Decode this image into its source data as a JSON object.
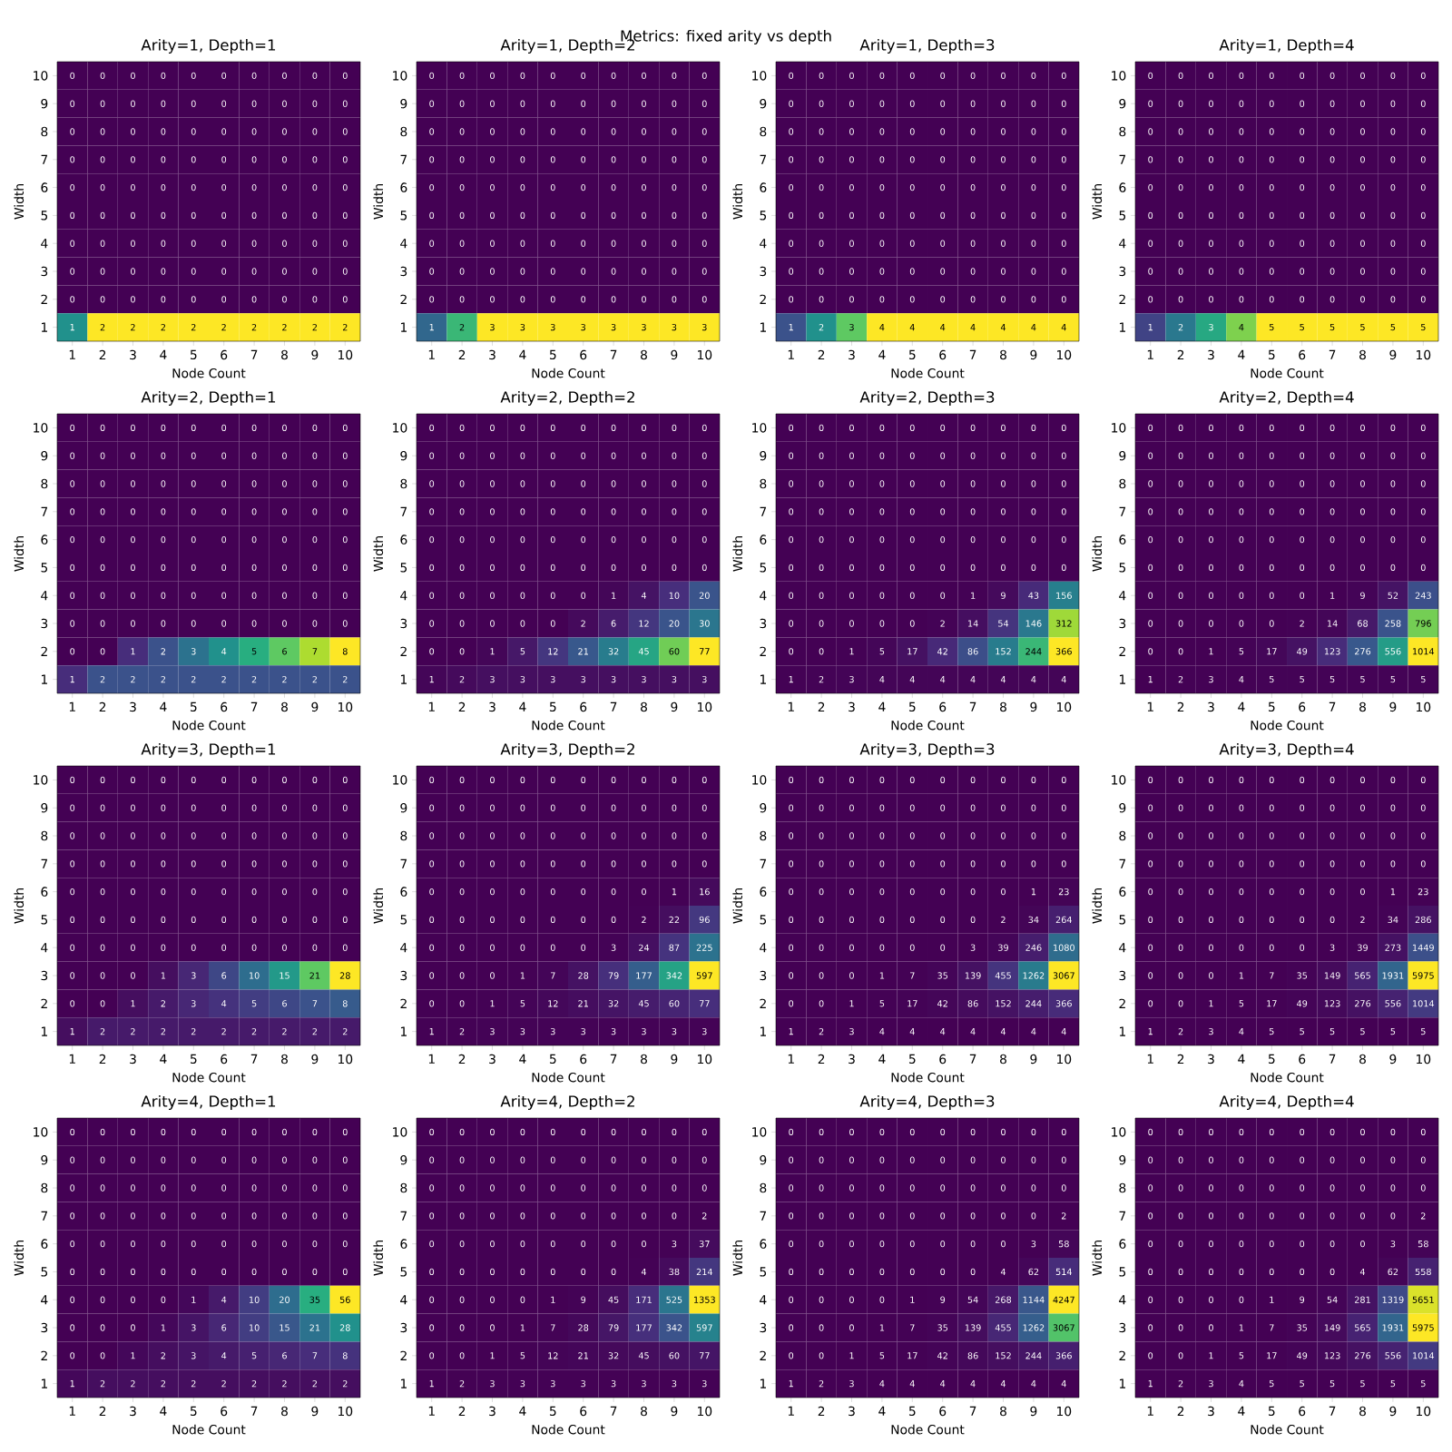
{
  "chart_data": [
    {
      "type": "heatmap",
      "title": "Arity=1, Depth=1",
      "xlabel": "Node Count",
      "ylabel": "Width",
      "annotations": [
        "Metrics: fixed arity vs depth"
      ],
      "categories": [
        "1",
        "2",
        "3",
        "4",
        "5",
        "6",
        "7",
        "8",
        "9",
        "10"
      ],
      "y_categories": [
        "10",
        "9",
        "8",
        "7",
        "6",
        "5",
        "4",
        "3",
        "2",
        "1"
      ],
      "data_labels": true,
      "cells": [
        [
          0,
          0,
          0,
          0,
          0,
          0,
          0,
          0,
          0,
          0
        ],
        [
          0,
          0,
          0,
          0,
          0,
          0,
          0,
          0,
          0,
          0
        ],
        [
          0,
          0,
          0,
          0,
          0,
          0,
          0,
          0,
          0,
          0
        ],
        [
          0,
          0,
          0,
          0,
          0,
          0,
          0,
          0,
          0,
          0
        ],
        [
          0,
          0,
          0,
          0,
          0,
          0,
          0,
          0,
          0,
          0
        ],
        [
          0,
          0,
          0,
          0,
          0,
          0,
          0,
          0,
          0,
          0
        ],
        [
          0,
          0,
          0,
          0,
          0,
          0,
          0,
          0,
          0,
          0
        ],
        [
          0,
          0,
          0,
          0,
          0,
          0,
          0,
          0,
          0,
          0
        ],
        [
          0,
          0,
          0,
          0,
          0,
          0,
          0,
          0,
          0,
          0
        ],
        [
          1,
          2,
          2,
          2,
          2,
          2,
          2,
          2,
          2,
          2
        ]
      ]
    },
    {
      "type": "heatmap",
      "title": "Arity=1, Depth=2",
      "xlabel": "Node Count",
      "ylabel": "Width",
      "categories": [
        "1",
        "2",
        "3",
        "4",
        "5",
        "6",
        "7",
        "8",
        "9",
        "10"
      ],
      "y_categories": [
        "10",
        "9",
        "8",
        "7",
        "6",
        "5",
        "4",
        "3",
        "2",
        "1"
      ],
      "data_labels": true,
      "cells": [
        [
          0,
          0,
          0,
          0,
          0,
          0,
          0,
          0,
          0,
          0
        ],
        [
          0,
          0,
          0,
          0,
          0,
          0,
          0,
          0,
          0,
          0
        ],
        [
          0,
          0,
          0,
          0,
          0,
          0,
          0,
          0,
          0,
          0
        ],
        [
          0,
          0,
          0,
          0,
          0,
          0,
          0,
          0,
          0,
          0
        ],
        [
          0,
          0,
          0,
          0,
          0,
          0,
          0,
          0,
          0,
          0
        ],
        [
          0,
          0,
          0,
          0,
          0,
          0,
          0,
          0,
          0,
          0
        ],
        [
          0,
          0,
          0,
          0,
          0,
          0,
          0,
          0,
          0,
          0
        ],
        [
          0,
          0,
          0,
          0,
          0,
          0,
          0,
          0,
          0,
          0
        ],
        [
          0,
          0,
          0,
          0,
          0,
          0,
          0,
          0,
          0,
          0
        ],
        [
          1,
          2,
          3,
          3,
          3,
          3,
          3,
          3,
          3,
          3
        ]
      ]
    },
    {
      "type": "heatmap",
      "title": "Arity=1, Depth=3",
      "xlabel": "Node Count",
      "ylabel": "Width",
      "categories": [
        "1",
        "2",
        "3",
        "4",
        "5",
        "6",
        "7",
        "8",
        "9",
        "10"
      ],
      "y_categories": [
        "10",
        "9",
        "8",
        "7",
        "6",
        "5",
        "4",
        "3",
        "2",
        "1"
      ],
      "data_labels": true,
      "cells": [
        [
          0,
          0,
          0,
          0,
          0,
          0,
          0,
          0,
          0,
          0
        ],
        [
          0,
          0,
          0,
          0,
          0,
          0,
          0,
          0,
          0,
          0
        ],
        [
          0,
          0,
          0,
          0,
          0,
          0,
          0,
          0,
          0,
          0
        ],
        [
          0,
          0,
          0,
          0,
          0,
          0,
          0,
          0,
          0,
          0
        ],
        [
          0,
          0,
          0,
          0,
          0,
          0,
          0,
          0,
          0,
          0
        ],
        [
          0,
          0,
          0,
          0,
          0,
          0,
          0,
          0,
          0,
          0
        ],
        [
          0,
          0,
          0,
          0,
          0,
          0,
          0,
          0,
          0,
          0
        ],
        [
          0,
          0,
          0,
          0,
          0,
          0,
          0,
          0,
          0,
          0
        ],
        [
          0,
          0,
          0,
          0,
          0,
          0,
          0,
          0,
          0,
          0
        ],
        [
          1,
          2,
          3,
          4,
          4,
          4,
          4,
          4,
          4,
          4
        ]
      ]
    },
    {
      "type": "heatmap",
      "title": "Arity=1, Depth=4",
      "xlabel": "Node Count",
      "ylabel": "Width",
      "categories": [
        "1",
        "2",
        "3",
        "4",
        "5",
        "6",
        "7",
        "8",
        "9",
        "10"
      ],
      "y_categories": [
        "10",
        "9",
        "8",
        "7",
        "6",
        "5",
        "4",
        "3",
        "2",
        "1"
      ],
      "data_labels": true,
      "cells": [
        [
          0,
          0,
          0,
          0,
          0,
          0,
          0,
          0,
          0,
          0
        ],
        [
          0,
          0,
          0,
          0,
          0,
          0,
          0,
          0,
          0,
          0
        ],
        [
          0,
          0,
          0,
          0,
          0,
          0,
          0,
          0,
          0,
          0
        ],
        [
          0,
          0,
          0,
          0,
          0,
          0,
          0,
          0,
          0,
          0
        ],
        [
          0,
          0,
          0,
          0,
          0,
          0,
          0,
          0,
          0,
          0
        ],
        [
          0,
          0,
          0,
          0,
          0,
          0,
          0,
          0,
          0,
          0
        ],
        [
          0,
          0,
          0,
          0,
          0,
          0,
          0,
          0,
          0,
          0
        ],
        [
          0,
          0,
          0,
          0,
          0,
          0,
          0,
          0,
          0,
          0
        ],
        [
          0,
          0,
          0,
          0,
          0,
          0,
          0,
          0,
          0,
          0
        ],
        [
          1,
          2,
          3,
          4,
          5,
          5,
          5,
          5,
          5,
          5
        ]
      ]
    },
    {
      "type": "heatmap",
      "title": "Arity=2, Depth=1",
      "xlabel": "Node Count",
      "ylabel": "Width",
      "categories": [
        "1",
        "2",
        "3",
        "4",
        "5",
        "6",
        "7",
        "8",
        "9",
        "10"
      ],
      "y_categories": [
        "10",
        "9",
        "8",
        "7",
        "6",
        "5",
        "4",
        "3",
        "2",
        "1"
      ],
      "data_labels": true,
      "cells": [
        [
          0,
          0,
          0,
          0,
          0,
          0,
          0,
          0,
          0,
          0
        ],
        [
          0,
          0,
          0,
          0,
          0,
          0,
          0,
          0,
          0,
          0
        ],
        [
          0,
          0,
          0,
          0,
          0,
          0,
          0,
          0,
          0,
          0
        ],
        [
          0,
          0,
          0,
          0,
          0,
          0,
          0,
          0,
          0,
          0
        ],
        [
          0,
          0,
          0,
          0,
          0,
          0,
          0,
          0,
          0,
          0
        ],
        [
          0,
          0,
          0,
          0,
          0,
          0,
          0,
          0,
          0,
          0
        ],
        [
          0,
          0,
          0,
          0,
          0,
          0,
          0,
          0,
          0,
          0
        ],
        [
          0,
          0,
          0,
          0,
          0,
          0,
          0,
          0,
          0,
          0
        ],
        [
          0,
          0,
          1,
          2,
          3,
          4,
          5,
          6,
          7,
          8
        ],
        [
          1,
          2,
          2,
          2,
          2,
          2,
          2,
          2,
          2,
          2
        ]
      ]
    },
    {
      "type": "heatmap",
      "title": "Arity=2, Depth=2",
      "xlabel": "Node Count",
      "ylabel": "Width",
      "categories": [
        "1",
        "2",
        "3",
        "4",
        "5",
        "6",
        "7",
        "8",
        "9",
        "10"
      ],
      "y_categories": [
        "10",
        "9",
        "8",
        "7",
        "6",
        "5",
        "4",
        "3",
        "2",
        "1"
      ],
      "data_labels": true,
      "cells": [
        [
          0,
          0,
          0,
          0,
          0,
          0,
          0,
          0,
          0,
          0
        ],
        [
          0,
          0,
          0,
          0,
          0,
          0,
          0,
          0,
          0,
          0
        ],
        [
          0,
          0,
          0,
          0,
          0,
          0,
          0,
          0,
          0,
          0
        ],
        [
          0,
          0,
          0,
          0,
          0,
          0,
          0,
          0,
          0,
          0
        ],
        [
          0,
          0,
          0,
          0,
          0,
          0,
          0,
          0,
          0,
          0
        ],
        [
          0,
          0,
          0,
          0,
          0,
          0,
          0,
          0,
          0,
          0
        ],
        [
          0,
          0,
          0,
          0,
          0,
          0,
          1,
          4,
          10,
          20
        ],
        [
          0,
          0,
          0,
          0,
          0,
          2,
          6,
          12,
          20,
          30
        ],
        [
          0,
          0,
          1,
          5,
          12,
          21,
          32,
          45,
          60,
          77
        ],
        [
          1,
          2,
          3,
          3,
          3,
          3,
          3,
          3,
          3,
          3
        ]
      ]
    },
    {
      "type": "heatmap",
      "title": "Arity=2, Depth=3",
      "xlabel": "Node Count",
      "ylabel": "Width",
      "categories": [
        "1",
        "2",
        "3",
        "4",
        "5",
        "6",
        "7",
        "8",
        "9",
        "10"
      ],
      "y_categories": [
        "10",
        "9",
        "8",
        "7",
        "6",
        "5",
        "4",
        "3",
        "2",
        "1"
      ],
      "data_labels": true,
      "cells": [
        [
          0,
          0,
          0,
          0,
          0,
          0,
          0,
          0,
          0,
          0
        ],
        [
          0,
          0,
          0,
          0,
          0,
          0,
          0,
          0,
          0,
          0
        ],
        [
          0,
          0,
          0,
          0,
          0,
          0,
          0,
          0,
          0,
          0
        ],
        [
          0,
          0,
          0,
          0,
          0,
          0,
          0,
          0,
          0,
          0
        ],
        [
          0,
          0,
          0,
          0,
          0,
          0,
          0,
          0,
          0,
          0
        ],
        [
          0,
          0,
          0,
          0,
          0,
          0,
          0,
          0,
          0,
          0
        ],
        [
          0,
          0,
          0,
          0,
          0,
          0,
          1,
          9,
          43,
          156
        ],
        [
          0,
          0,
          0,
          0,
          0,
          2,
          14,
          54,
          146,
          312
        ],
        [
          0,
          0,
          1,
          5,
          17,
          42,
          86,
          152,
          244,
          366
        ],
        [
          1,
          2,
          3,
          4,
          4,
          4,
          4,
          4,
          4,
          4
        ]
      ]
    },
    {
      "type": "heatmap",
      "title": "Arity=2, Depth=4",
      "xlabel": "Node Count",
      "ylabel": "Width",
      "categories": [
        "1",
        "2",
        "3",
        "4",
        "5",
        "6",
        "7",
        "8",
        "9",
        "10"
      ],
      "y_categories": [
        "10",
        "9",
        "8",
        "7",
        "6",
        "5",
        "4",
        "3",
        "2",
        "1"
      ],
      "data_labels": true,
      "cells": [
        [
          0,
          0,
          0,
          0,
          0,
          0,
          0,
          0,
          0,
          0
        ],
        [
          0,
          0,
          0,
          0,
          0,
          0,
          0,
          0,
          0,
          0
        ],
        [
          0,
          0,
          0,
          0,
          0,
          0,
          0,
          0,
          0,
          0
        ],
        [
          0,
          0,
          0,
          0,
          0,
          0,
          0,
          0,
          0,
          0
        ],
        [
          0,
          0,
          0,
          0,
          0,
          0,
          0,
          0,
          0,
          0
        ],
        [
          0,
          0,
          0,
          0,
          0,
          0,
          0,
          0,
          0,
          0
        ],
        [
          0,
          0,
          0,
          0,
          0,
          0,
          1,
          9,
          52,
          243
        ],
        [
          0,
          0,
          0,
          0,
          0,
          2,
          14,
          68,
          258,
          796
        ],
        [
          0,
          0,
          1,
          5,
          17,
          49,
          123,
          276,
          556,
          1014
        ],
        [
          1,
          2,
          3,
          4,
          5,
          5,
          5,
          5,
          5,
          5
        ]
      ]
    },
    {
      "type": "heatmap",
      "title": "Arity=3, Depth=1",
      "xlabel": "Node Count",
      "ylabel": "Width",
      "categories": [
        "1",
        "2",
        "3",
        "4",
        "5",
        "6",
        "7",
        "8",
        "9",
        "10"
      ],
      "y_categories": [
        "10",
        "9",
        "8",
        "7",
        "6",
        "5",
        "4",
        "3",
        "2",
        "1"
      ],
      "data_labels": true,
      "cells": [
        [
          0,
          0,
          0,
          0,
          0,
          0,
          0,
          0,
          0,
          0
        ],
        [
          0,
          0,
          0,
          0,
          0,
          0,
          0,
          0,
          0,
          0
        ],
        [
          0,
          0,
          0,
          0,
          0,
          0,
          0,
          0,
          0,
          0
        ],
        [
          0,
          0,
          0,
          0,
          0,
          0,
          0,
          0,
          0,
          0
        ],
        [
          0,
          0,
          0,
          0,
          0,
          0,
          0,
          0,
          0,
          0
        ],
        [
          0,
          0,
          0,
          0,
          0,
          0,
          0,
          0,
          0,
          0
        ],
        [
          0,
          0,
          0,
          0,
          0,
          0,
          0,
          0,
          0,
          0
        ],
        [
          0,
          0,
          0,
          1,
          3,
          6,
          10,
          15,
          21,
          28
        ],
        [
          0,
          0,
          1,
          2,
          3,
          4,
          5,
          6,
          7,
          8
        ],
        [
          1,
          2,
          2,
          2,
          2,
          2,
          2,
          2,
          2,
          2
        ]
      ]
    },
    {
      "type": "heatmap",
      "title": "Arity=3, Depth=2",
      "xlabel": "Node Count",
      "ylabel": "Width",
      "categories": [
        "1",
        "2",
        "3",
        "4",
        "5",
        "6",
        "7",
        "8",
        "9",
        "10"
      ],
      "y_categories": [
        "10",
        "9",
        "8",
        "7",
        "6",
        "5",
        "4",
        "3",
        "2",
        "1"
      ],
      "data_labels": true,
      "cells": [
        [
          0,
          0,
          0,
          0,
          0,
          0,
          0,
          0,
          0,
          0
        ],
        [
          0,
          0,
          0,
          0,
          0,
          0,
          0,
          0,
          0,
          0
        ],
        [
          0,
          0,
          0,
          0,
          0,
          0,
          0,
          0,
          0,
          0
        ],
        [
          0,
          0,
          0,
          0,
          0,
          0,
          0,
          0,
          0,
          0
        ],
        [
          0,
          0,
          0,
          0,
          0,
          0,
          0,
          0,
          1,
          16
        ],
        [
          0,
          0,
          0,
          0,
          0,
          0,
          0,
          2,
          22,
          96
        ],
        [
          0,
          0,
          0,
          0,
          0,
          0,
          3,
          24,
          87,
          225
        ],
        [
          0,
          0,
          0,
          1,
          7,
          28,
          79,
          177,
          342,
          597
        ],
        [
          0,
          0,
          1,
          5,
          12,
          21,
          32,
          45,
          60,
          77
        ],
        [
          1,
          2,
          3,
          3,
          3,
          3,
          3,
          3,
          3,
          3
        ]
      ]
    },
    {
      "type": "heatmap",
      "title": "Arity=3, Depth=3",
      "xlabel": "Node Count",
      "ylabel": "Width",
      "categories": [
        "1",
        "2",
        "3",
        "4",
        "5",
        "6",
        "7",
        "8",
        "9",
        "10"
      ],
      "y_categories": [
        "10",
        "9",
        "8",
        "7",
        "6",
        "5",
        "4",
        "3",
        "2",
        "1"
      ],
      "data_labels": true,
      "cells": [
        [
          0,
          0,
          0,
          0,
          0,
          0,
          0,
          0,
          0,
          0
        ],
        [
          0,
          0,
          0,
          0,
          0,
          0,
          0,
          0,
          0,
          0
        ],
        [
          0,
          0,
          0,
          0,
          0,
          0,
          0,
          0,
          0,
          0
        ],
        [
          0,
          0,
          0,
          0,
          0,
          0,
          0,
          0,
          0,
          0
        ],
        [
          0,
          0,
          0,
          0,
          0,
          0,
          0,
          0,
          1,
          23
        ],
        [
          0,
          0,
          0,
          0,
          0,
          0,
          0,
          2,
          34,
          264
        ],
        [
          0,
          0,
          0,
          0,
          0,
          0,
          3,
          39,
          246,
          1080
        ],
        [
          0,
          0,
          0,
          1,
          7,
          35,
          139,
          455,
          1262,
          3067
        ],
        [
          0,
          0,
          1,
          5,
          17,
          42,
          86,
          152,
          244,
          366
        ],
        [
          1,
          2,
          3,
          4,
          4,
          4,
          4,
          4,
          4,
          4
        ]
      ]
    },
    {
      "type": "heatmap",
      "title": "Arity=3, Depth=4",
      "xlabel": "Node Count",
      "ylabel": "Width",
      "categories": [
        "1",
        "2",
        "3",
        "4",
        "5",
        "6",
        "7",
        "8",
        "9",
        "10"
      ],
      "y_categories": [
        "10",
        "9",
        "8",
        "7",
        "6",
        "5",
        "4",
        "3",
        "2",
        "1"
      ],
      "data_labels": true,
      "cells": [
        [
          0,
          0,
          0,
          0,
          0,
          0,
          0,
          0,
          0,
          0
        ],
        [
          0,
          0,
          0,
          0,
          0,
          0,
          0,
          0,
          0,
          0
        ],
        [
          0,
          0,
          0,
          0,
          0,
          0,
          0,
          0,
          0,
          0
        ],
        [
          0,
          0,
          0,
          0,
          0,
          0,
          0,
          0,
          0,
          0
        ],
        [
          0,
          0,
          0,
          0,
          0,
          0,
          0,
          0,
          1,
          23
        ],
        [
          0,
          0,
          0,
          0,
          0,
          0,
          0,
          2,
          34,
          286
        ],
        [
          0,
          0,
          0,
          0,
          0,
          0,
          3,
          39,
          273,
          1449
        ],
        [
          0,
          0,
          0,
          1,
          7,
          35,
          149,
          565,
          1931,
          5975
        ],
        [
          0,
          0,
          1,
          5,
          17,
          49,
          123,
          276,
          556,
          1014
        ],
        [
          1,
          2,
          3,
          4,
          5,
          5,
          5,
          5,
          5,
          5
        ]
      ]
    },
    {
      "type": "heatmap",
      "title": "Arity=4, Depth=1",
      "xlabel": "Node Count",
      "ylabel": "Width",
      "categories": [
        "1",
        "2",
        "3",
        "4",
        "5",
        "6",
        "7",
        "8",
        "9",
        "10"
      ],
      "y_categories": [
        "10",
        "9",
        "8",
        "7",
        "6",
        "5",
        "4",
        "3",
        "2",
        "1"
      ],
      "data_labels": true,
      "cells": [
        [
          0,
          0,
          0,
          0,
          0,
          0,
          0,
          0,
          0,
          0
        ],
        [
          0,
          0,
          0,
          0,
          0,
          0,
          0,
          0,
          0,
          0
        ],
        [
          0,
          0,
          0,
          0,
          0,
          0,
          0,
          0,
          0,
          0
        ],
        [
          0,
          0,
          0,
          0,
          0,
          0,
          0,
          0,
          0,
          0
        ],
        [
          0,
          0,
          0,
          0,
          0,
          0,
          0,
          0,
          0,
          0
        ],
        [
          0,
          0,
          0,
          0,
          0,
          0,
          0,
          0,
          0,
          0
        ],
        [
          0,
          0,
          0,
          0,
          1,
          4,
          10,
          20,
          35,
          56
        ],
        [
          0,
          0,
          0,
          1,
          3,
          6,
          10,
          15,
          21,
          28
        ],
        [
          0,
          0,
          1,
          2,
          3,
          4,
          5,
          6,
          7,
          8
        ],
        [
          1,
          2,
          2,
          2,
          2,
          2,
          2,
          2,
          2,
          2
        ]
      ]
    },
    {
      "type": "heatmap",
      "title": "Arity=4, Depth=2",
      "xlabel": "Node Count",
      "ylabel": "Width",
      "categories": [
        "1",
        "2",
        "3",
        "4",
        "5",
        "6",
        "7",
        "8",
        "9",
        "10"
      ],
      "y_categories": [
        "10",
        "9",
        "8",
        "7",
        "6",
        "5",
        "4",
        "3",
        "2",
        "1"
      ],
      "data_labels": true,
      "cells": [
        [
          0,
          0,
          0,
          0,
          0,
          0,
          0,
          0,
          0,
          0
        ],
        [
          0,
          0,
          0,
          0,
          0,
          0,
          0,
          0,
          0,
          0
        ],
        [
          0,
          0,
          0,
          0,
          0,
          0,
          0,
          0,
          0,
          0
        ],
        [
          0,
          0,
          0,
          0,
          0,
          0,
          0,
          0,
          0,
          2
        ],
        [
          0,
          0,
          0,
          0,
          0,
          0,
          0,
          0,
          3,
          37
        ],
        [
          0,
          0,
          0,
          0,
          0,
          0,
          0,
          4,
          38,
          214
        ],
        [
          0,
          0,
          0,
          0,
          1,
          9,
          45,
          171,
          525,
          1353
        ],
        [
          0,
          0,
          0,
          1,
          7,
          28,
          79,
          177,
          342,
          597
        ],
        [
          0,
          0,
          1,
          5,
          12,
          21,
          32,
          45,
          60,
          77
        ],
        [
          1,
          2,
          3,
          3,
          3,
          3,
          3,
          3,
          3,
          3
        ]
      ]
    },
    {
      "type": "heatmap",
      "title": "Arity=4, Depth=3",
      "xlabel": "Node Count",
      "ylabel": "Width",
      "categories": [
        "1",
        "2",
        "3",
        "4",
        "5",
        "6",
        "7",
        "8",
        "9",
        "10"
      ],
      "y_categories": [
        "10",
        "9",
        "8",
        "7",
        "6",
        "5",
        "4",
        "3",
        "2",
        "1"
      ],
      "data_labels": true,
      "cells": [
        [
          0,
          0,
          0,
          0,
          0,
          0,
          0,
          0,
          0,
          0
        ],
        [
          0,
          0,
          0,
          0,
          0,
          0,
          0,
          0,
          0,
          0
        ],
        [
          0,
          0,
          0,
          0,
          0,
          0,
          0,
          0,
          0,
          0
        ],
        [
          0,
          0,
          0,
          0,
          0,
          0,
          0,
          0,
          0,
          2
        ],
        [
          0,
          0,
          0,
          0,
          0,
          0,
          0,
          0,
          3,
          58
        ],
        [
          0,
          0,
          0,
          0,
          0,
          0,
          0,
          4,
          62,
          514
        ],
        [
          0,
          0,
          0,
          0,
          1,
          9,
          54,
          268,
          1144,
          4247
        ],
        [
          0,
          0,
          0,
          1,
          7,
          35,
          139,
          455,
          1262,
          3067
        ],
        [
          0,
          0,
          1,
          5,
          17,
          42,
          86,
          152,
          244,
          366
        ],
        [
          1,
          2,
          3,
          4,
          4,
          4,
          4,
          4,
          4,
          4
        ]
      ]
    },
    {
      "type": "heatmap",
      "title": "Arity=4, Depth=4",
      "xlabel": "Node Count",
      "ylabel": "Width",
      "categories": [
        "1",
        "2",
        "3",
        "4",
        "5",
        "6",
        "7",
        "8",
        "9",
        "10"
      ],
      "y_categories": [
        "10",
        "9",
        "8",
        "7",
        "6",
        "5",
        "4",
        "3",
        "2",
        "1"
      ],
      "data_labels": true,
      "cells": [
        [
          0,
          0,
          0,
          0,
          0,
          0,
          0,
          0,
          0,
          0
        ],
        [
          0,
          0,
          0,
          0,
          0,
          0,
          0,
          0,
          0,
          0
        ],
        [
          0,
          0,
          0,
          0,
          0,
          0,
          0,
          0,
          0,
          0
        ],
        [
          0,
          0,
          0,
          0,
          0,
          0,
          0,
          0,
          0,
          2
        ],
        [
          0,
          0,
          0,
          0,
          0,
          0,
          0,
          0,
          3,
          58
        ],
        [
          0,
          0,
          0,
          0,
          0,
          0,
          0,
          4,
          62,
          558
        ],
        [
          0,
          0,
          0,
          0,
          1,
          9,
          54,
          281,
          1319,
          5651
        ],
        [
          0,
          0,
          0,
          1,
          7,
          35,
          149,
          565,
          1931,
          5975
        ],
        [
          0,
          0,
          1,
          5,
          17,
          49,
          123,
          276,
          556,
          1014
        ],
        [
          1,
          2,
          3,
          4,
          5,
          5,
          5,
          5,
          5,
          5
        ]
      ]
    }
  ]
}
